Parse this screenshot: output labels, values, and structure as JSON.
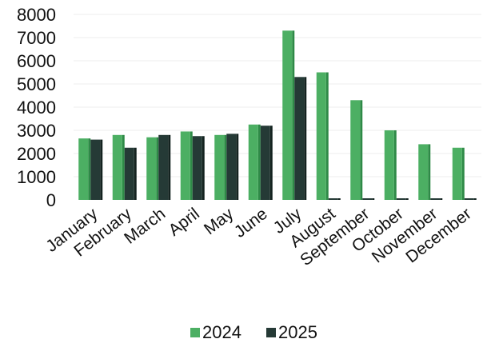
{
  "chart_data": {
    "type": "bar",
    "categories": [
      "January",
      "February",
      "March",
      "April",
      "May",
      "June",
      "July",
      "August",
      "September",
      "October",
      "November",
      "December"
    ],
    "series": [
      {
        "name": "2024",
        "color": "#4caf63",
        "values": [
          2650,
          2800,
          2700,
          2950,
          2800,
          3250,
          7300,
          5500,
          4300,
          3000,
          2400,
          2250
        ]
      },
      {
        "name": "2025",
        "color": "#253a36",
        "values": [
          2600,
          2250,
          2800,
          2750,
          2850,
          3200,
          5300,
          0,
          0,
          0,
          0,
          0
        ]
      }
    ],
    "y_ticks": [
      "0",
      "1000",
      "2000",
      "3000",
      "4000",
      "5000",
      "6000",
      "7000",
      "8000"
    ],
    "ylim": [
      0,
      8000
    ],
    "title": "",
    "xlabel": "",
    "ylabel": "",
    "grid": true,
    "legend_position": "bottom"
  }
}
